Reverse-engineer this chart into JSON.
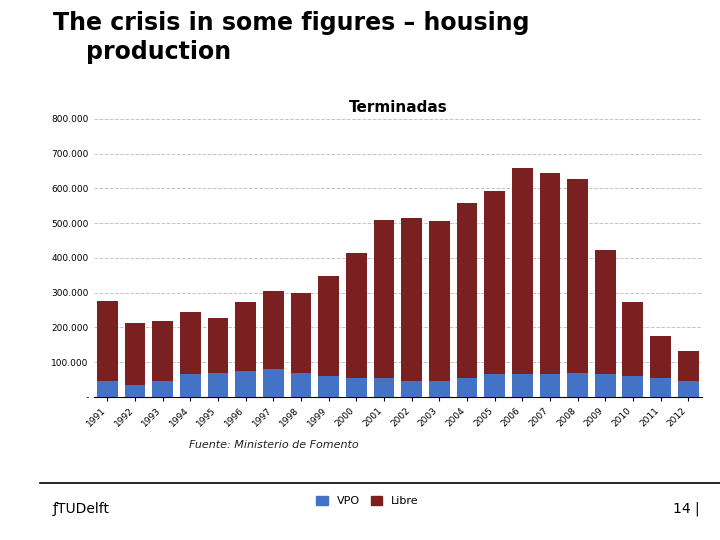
{
  "title_line1": "The crisis in some figures – housing",
  "title_line2": "    production",
  "chart_title": "Terminadas",
  "years": [
    "1991",
    "1992",
    "1993",
    "1994",
    "1995",
    "1996",
    "1997",
    "1998",
    "1999",
    "2000",
    "2001",
    "2002",
    "2003",
    "2004",
    "2005",
    "2006",
    "2007",
    "2008",
    "2009",
    "2010",
    "2011",
    "2012"
  ],
  "vpo": [
    45000,
    33000,
    45000,
    65000,
    70000,
    75000,
    80000,
    70000,
    60000,
    55000,
    55000,
    47000,
    47000,
    55000,
    65000,
    65000,
    65000,
    70000,
    65000,
    60000,
    55000,
    45000
  ],
  "libre": [
    230000,
    180000,
    173000,
    178000,
    158000,
    197000,
    225000,
    228000,
    288000,
    358000,
    453000,
    468000,
    458000,
    503000,
    528000,
    593000,
    578000,
    558000,
    358000,
    213000,
    120000,
    88000
  ],
  "vpo_color": "#4472C4",
  "libre_color": "#7B2020",
  "ylim_max": 800000,
  "yticks": [
    0,
    100000,
    200000,
    300000,
    400000,
    500000,
    600000,
    700000,
    800000
  ],
  "ytick_labels": [
    "-",
    "100.000",
    "200.000",
    "300.000",
    "400.000",
    "500.000",
    "600.000",
    "700.000",
    "800.000"
  ],
  "source_text": "Fuente: Ministerio de Fomento",
  "footer_number": "14 |",
  "bg_color": "#FFFFFF",
  "sidebar_color": "#1F6EA0",
  "footer_bar_color": "#2E9BD6",
  "grid_color": "#AAAAAA",
  "title_fontsize": 17,
  "chart_title_fontsize": 11,
  "tick_fontsize": 6.5,
  "legend_fontsize": 8,
  "source_fontsize": 8
}
